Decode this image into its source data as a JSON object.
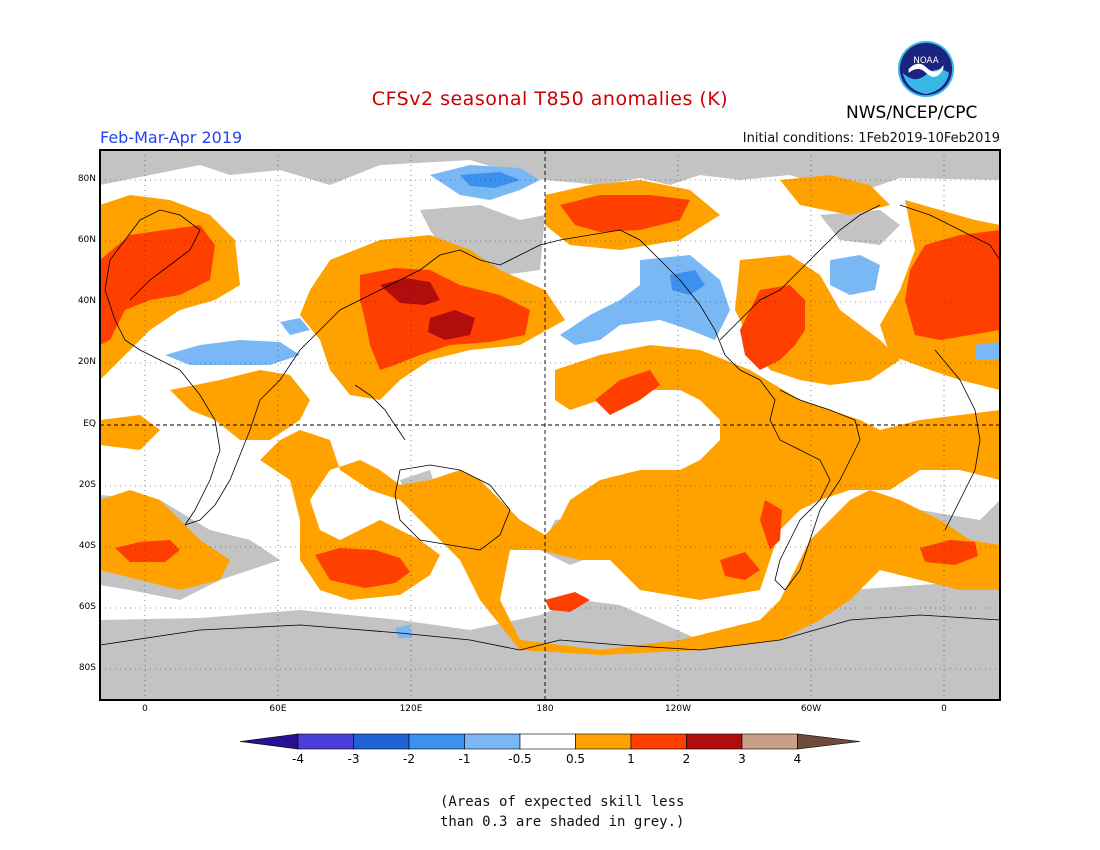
{
  "title": "CFSv2 seasonal T850 anomalies (K)",
  "season": "Feb-Mar-Apr 2019",
  "initial_conditions": "Initial conditions: 1Feb2019-10Feb2019",
  "agency": "NWS/NCEP/CPC",
  "logo_text": "NOAA",
  "lat_labels": [
    "80N",
    "60N",
    "40N",
    "20N",
    "EQ",
    "20S",
    "40S",
    "60S",
    "80S"
  ],
  "lon_labels": [
    "0",
    "60E",
    "120E",
    "180",
    "120W",
    "60W",
    "0"
  ],
  "colorbar": {
    "ticks": [
      "-4",
      "-3",
      "-2",
      "-1",
      "-0.5",
      "0.5",
      "1",
      "2",
      "3",
      "4"
    ],
    "colors": [
      "#2a1190",
      "#4a3fd6",
      "#1f62d8",
      "#3c90ee",
      "#7ab8f5",
      "#ffffff",
      "#ffa200",
      "#ff3f00",
      "#b20d0d",
      "#c8a08a",
      "#6e4a3a"
    ]
  },
  "legend_colors": {
    "skill_grey": "#c3c3c3",
    "orange": "#ffa200",
    "red": "#ff3f00",
    "darkred": "#b20d0d",
    "maroon": "#6a0f0f",
    "lightblue": "#7ab8f5",
    "blue": "#3c90ee"
  },
  "note_line1": "(Areas of expected skill less",
  "note_line2": "than 0.3 are shaded in grey.)"
}
